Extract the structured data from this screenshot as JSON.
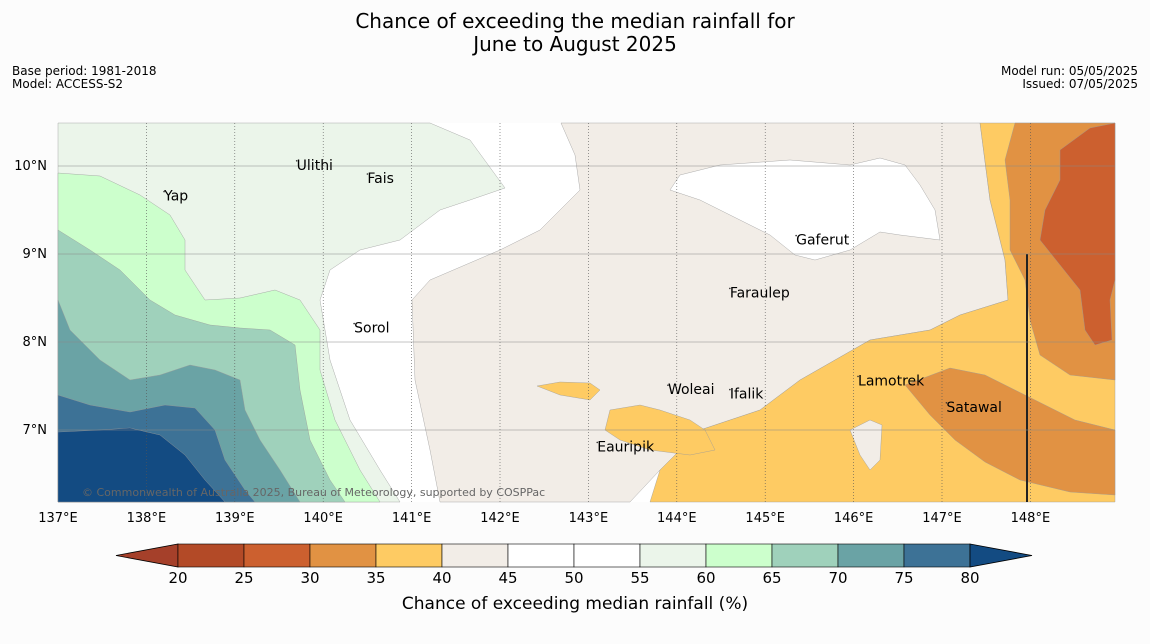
{
  "title": {
    "line1": "Chance of exceeding the median rainfall for",
    "line2": "June to August 2025"
  },
  "meta_left": {
    "base_period": "Base period: 1981-2018",
    "model": "Model: ACCESS-S2"
  },
  "meta_right": {
    "model_run": "Model run: 05/05/2025",
    "issued": "Issued: 07/05/2025"
  },
  "copyright": "© Commonwealth of Australia 2025, Bureau of Meteorology, supported by COSPPac",
  "map": {
    "lon_range": [
      137,
      149
    ],
    "lat_range": [
      6.2,
      10.5
    ],
    "lon_ticks": [
      "137°E",
      "138°E",
      "139°E",
      "140°E",
      "141°E",
      "142°E",
      "143°E",
      "144°E",
      "145°E",
      "146°E",
      "147°E",
      "148°E"
    ],
    "lat_ticks": [
      "10°N",
      "9°N",
      "8°N",
      "7°N"
    ],
    "places": [
      {
        "name": "Yap",
        "lon": 138.2,
        "lat": 9.55
      },
      {
        "name": "Ulithi",
        "lon": 139.7,
        "lat": 9.9
      },
      {
        "name": "Fais",
        "lon": 140.5,
        "lat": 9.75
      },
      {
        "name": "Gaferut",
        "lon": 145.35,
        "lat": 9.05
      },
      {
        "name": "Faraulep",
        "lon": 144.6,
        "lat": 8.45
      },
      {
        "name": "Sorol",
        "lon": 140.35,
        "lat": 8.05
      },
      {
        "name": "Woleai",
        "lon": 143.9,
        "lat": 7.35
      },
      {
        "name": "Ifalik",
        "lon": 144.6,
        "lat": 7.3
      },
      {
        "name": "Lamotrek",
        "lon": 146.05,
        "lat": 7.45
      },
      {
        "name": "Satawal",
        "lon": 147.05,
        "lat": 7.15
      },
      {
        "name": "Eauripik",
        "lon": 143.1,
        "lat": 6.7
      }
    ]
  },
  "colorbar": {
    "label": "Chance of exceeding median rainfall (%)",
    "ticks": [
      "20",
      "25",
      "30",
      "35",
      "40",
      "45",
      "50",
      "55",
      "60",
      "65",
      "70",
      "75",
      "80"
    ],
    "under_color": "#a5402a",
    "over_color": "#134b82",
    "colors": [
      "#b34a27",
      "#cc602f",
      "#e19243",
      "#fecb63",
      "#f2ede7",
      "#ffffff",
      "#ffffff",
      "#ebf5ea",
      "#ccffcc",
      "#9fd1bb",
      "#6aa3a5",
      "#3d7296"
    ]
  }
}
